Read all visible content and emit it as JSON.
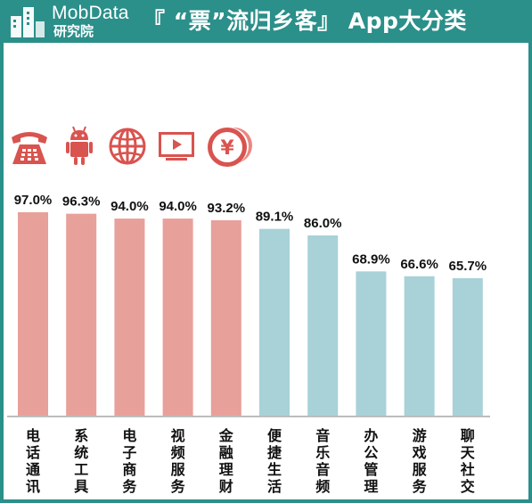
{
  "header": {
    "brand": "MobData",
    "brand_sub": "研究院",
    "title": "『 “票”流归乡客』 App大分类"
  },
  "icons": [
    "telephone-icon",
    "android-icon",
    "globe-icon",
    "video-icon",
    "yuan-coin-icon"
  ],
  "colors": {
    "header": "#2b8f8a",
    "pink": "#e8a09a",
    "blue": "#a8d1d8",
    "icon": "#d9534f",
    "axis": "#bdbdbd"
  },
  "chart_data": {
    "type": "bar",
    "title": "",
    "xlabel": "",
    "ylabel": "",
    "ylim": [
      0,
      100
    ],
    "grid": false,
    "categories": [
      "电话通讯",
      "系统工具",
      "电子商务",
      "视频服务",
      "金融理财",
      "便捷生活",
      "音乐音频",
      "办公管理",
      "游戏服务",
      "聊天社交"
    ],
    "values": [
      97.0,
      96.3,
      94.0,
      94.0,
      93.2,
      89.1,
      86.0,
      68.9,
      66.6,
      65.7
    ],
    "value_labels": [
      "97.0%",
      "96.3%",
      "94.0%",
      "94.0%",
      "93.2%",
      "89.1%",
      "86.0%",
      "68.9%",
      "66.6%",
      "65.7%"
    ],
    "bar_colors": [
      "#e8a09a",
      "#e8a09a",
      "#e8a09a",
      "#e8a09a",
      "#e8a09a",
      "#a8d1d8",
      "#a8d1d8",
      "#a8d1d8",
      "#a8d1d8",
      "#a8d1d8"
    ]
  }
}
